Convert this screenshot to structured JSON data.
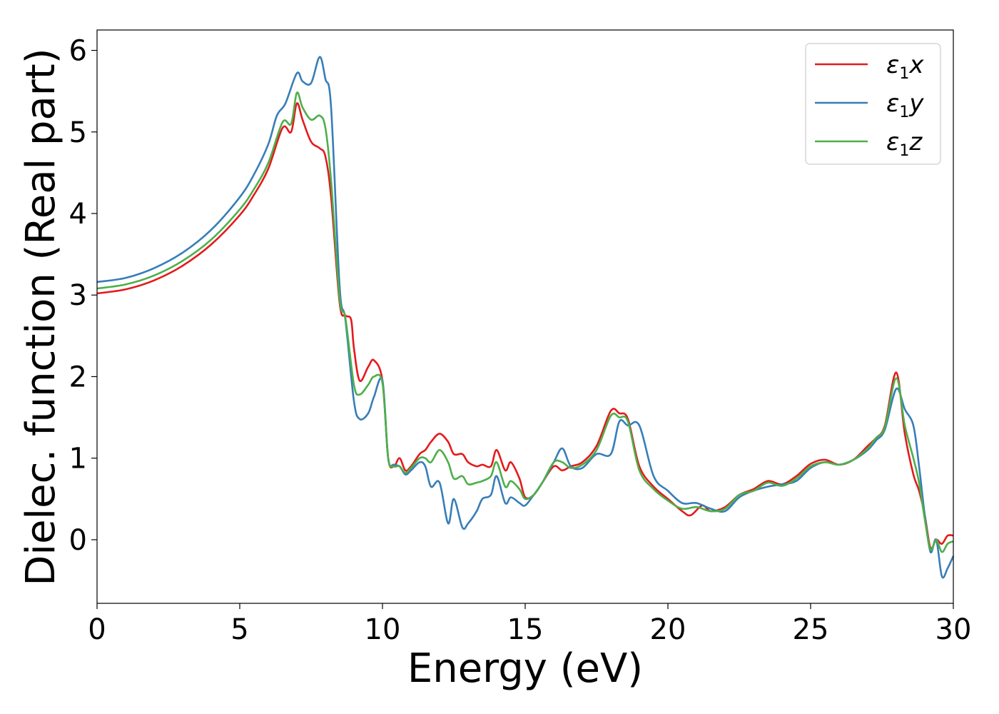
{
  "chart_data": {
    "type": "line",
    "title": "",
    "xlabel": "Energy (eV)",
    "ylabel": "Dielec. function (Real part)",
    "xlim": [
      0,
      30
    ],
    "ylim": [
      -0.78,
      6.25
    ],
    "xticks": [
      0,
      5,
      10,
      15,
      20,
      25,
      30
    ],
    "yticks": [
      0,
      1,
      2,
      3,
      4,
      5,
      6
    ],
    "grid": false,
    "legend_position": "top-right",
    "series": [
      {
        "name": "ε₁x",
        "legend_main": "ε",
        "legend_sub": "1",
        "legend_tail": "x",
        "color": "#e41a1c",
        "x": [
          0,
          1,
          2,
          3,
          4,
          5,
          5.5,
          6,
          6.5,
          6.8,
          7.0,
          7.2,
          7.5,
          7.8,
          8.0,
          8.2,
          8.5,
          8.7,
          8.9,
          9.0,
          9.2,
          9.5,
          9.7,
          10.0,
          10.2,
          10.4,
          10.6,
          10.8,
          11.0,
          11.3,
          11.5,
          11.7,
          12.0,
          12.3,
          12.5,
          12.8,
          13.0,
          13.3,
          13.5,
          13.8,
          14.0,
          14.3,
          14.5,
          14.8,
          15.0,
          15.3,
          15.6,
          16.0,
          16.3,
          16.6,
          17.0,
          17.5,
          18.0,
          18.3,
          18.6,
          19.0,
          19.5,
          20.0,
          20.5,
          20.8,
          21.2,
          21.5,
          22.0,
          22.5,
          23.0,
          23.5,
          24.0,
          24.5,
          25.0,
          25.5,
          26.0,
          26.5,
          27.0,
          27.3,
          27.6,
          28.0,
          28.3,
          28.6,
          28.8,
          29.0,
          29.2,
          29.4,
          29.6,
          29.8,
          30.0
        ],
        "y": [
          3.02,
          3.07,
          3.18,
          3.36,
          3.62,
          3.98,
          4.23,
          4.55,
          5.05,
          5.0,
          5.35,
          5.15,
          4.88,
          4.8,
          4.7,
          4.2,
          2.9,
          2.75,
          2.7,
          2.35,
          1.95,
          2.12,
          2.2,
          1.95,
          1.0,
          0.9,
          1.0,
          0.85,
          0.9,
          1.05,
          1.1,
          1.2,
          1.3,
          1.2,
          1.05,
          1.05,
          0.95,
          0.9,
          0.92,
          0.9,
          1.1,
          0.85,
          0.95,
          0.75,
          0.52,
          0.55,
          0.7,
          0.9,
          0.85,
          0.9,
          0.95,
          1.15,
          1.58,
          1.55,
          1.48,
          0.9,
          0.65,
          0.5,
          0.35,
          0.3,
          0.42,
          0.35,
          0.4,
          0.55,
          0.62,
          0.72,
          0.68,
          0.78,
          0.93,
          0.98,
          0.92,
          0.98,
          1.15,
          1.25,
          1.4,
          2.05,
          1.3,
          0.8,
          0.6,
          0.3,
          -0.1,
          0.0,
          -0.05,
          0.05,
          0.05
        ]
      },
      {
        "name": "ε₁y",
        "legend_main": "ε",
        "legend_sub": "1",
        "legend_tail": "y",
        "color": "#377eb8",
        "x": [
          0,
          1,
          2,
          3,
          4,
          5,
          5.5,
          6,
          6.3,
          6.6,
          7.0,
          7.2,
          7.5,
          7.8,
          8.0,
          8.2,
          8.5,
          8.7,
          9.0,
          9.2,
          9.5,
          9.7,
          10.0,
          10.2,
          10.4,
          10.6,
          10.8,
          11.0,
          11.3,
          11.5,
          11.7,
          12.0,
          12.3,
          12.5,
          12.8,
          13.0,
          13.3,
          13.5,
          13.8,
          14.0,
          14.3,
          14.5,
          14.8,
          15.0,
          15.3,
          15.6,
          16.0,
          16.3,
          16.6,
          17.0,
          17.5,
          18.0,
          18.3,
          18.6,
          19.0,
          19.5,
          20.0,
          20.5,
          21.0,
          21.5,
          22.0,
          22.5,
          23.0,
          23.5,
          24.0,
          24.5,
          25.0,
          25.5,
          26.0,
          26.5,
          27.0,
          27.3,
          27.6,
          28.0,
          28.3,
          28.6,
          28.8,
          29.0,
          29.2,
          29.4,
          29.6,
          29.8,
          30.0
        ],
        "y": [
          3.16,
          3.21,
          3.33,
          3.52,
          3.8,
          4.2,
          4.48,
          4.85,
          5.2,
          5.35,
          5.72,
          5.62,
          5.6,
          5.92,
          5.65,
          5.3,
          3.1,
          2.7,
          1.7,
          1.48,
          1.55,
          1.75,
          1.95,
          1.0,
          0.92,
          0.9,
          0.8,
          0.85,
          0.95,
          0.9,
          0.65,
          0.7,
          0.2,
          0.5,
          0.15,
          0.2,
          0.35,
          0.5,
          0.55,
          0.78,
          0.45,
          0.52,
          0.45,
          0.42,
          0.55,
          0.7,
          0.95,
          1.12,
          0.9,
          0.88,
          1.05,
          1.05,
          1.45,
          1.4,
          1.4,
          0.78,
          0.6,
          0.45,
          0.45,
          0.38,
          0.35,
          0.52,
          0.6,
          0.65,
          0.68,
          0.72,
          0.88,
          0.95,
          0.92,
          0.98,
          1.1,
          1.22,
          1.35,
          1.85,
          1.6,
          1.4,
          0.9,
          0.3,
          -0.15,
          0.0,
          -0.45,
          -0.35,
          -0.2
        ]
      },
      {
        "name": "ε₁z",
        "legend_main": "ε",
        "legend_sub": "1",
        "legend_tail": "z",
        "color": "#4daf4a",
        "x": [
          0,
          1,
          2,
          3,
          4,
          5,
          5.5,
          6,
          6.5,
          6.8,
          7.0,
          7.2,
          7.5,
          7.8,
          8.0,
          8.2,
          8.5,
          8.7,
          9.0,
          9.2,
          9.5,
          9.7,
          10.0,
          10.2,
          10.4,
          10.6,
          10.8,
          11.0,
          11.3,
          11.5,
          11.7,
          12.0,
          12.3,
          12.5,
          12.8,
          13.0,
          13.3,
          13.5,
          13.8,
          14.0,
          14.3,
          14.5,
          14.8,
          15.0,
          15.3,
          15.6,
          16.0,
          16.3,
          16.6,
          17.0,
          17.5,
          18.0,
          18.3,
          18.6,
          19.0,
          19.5,
          20.0,
          20.5,
          21.0,
          21.5,
          22.0,
          22.5,
          23.0,
          23.5,
          24.0,
          24.5,
          25.0,
          25.5,
          26.0,
          26.5,
          27.0,
          27.3,
          27.6,
          28.0,
          28.3,
          28.6,
          28.8,
          29.0,
          29.2,
          29.4,
          29.6,
          29.8,
          30.0
        ],
        "y": [
          3.08,
          3.13,
          3.24,
          3.42,
          3.68,
          4.05,
          4.3,
          4.62,
          5.12,
          5.1,
          5.48,
          5.3,
          5.15,
          5.2,
          5.05,
          4.4,
          2.95,
          2.72,
          1.9,
          1.78,
          1.9,
          2.0,
          1.92,
          1.0,
          0.9,
          0.9,
          0.82,
          0.88,
          1.0,
          1.0,
          0.95,
          1.1,
          0.95,
          0.75,
          0.78,
          0.68,
          0.7,
          0.72,
          0.78,
          0.95,
          0.65,
          0.72,
          0.62,
          0.5,
          0.55,
          0.7,
          0.95,
          0.95,
          0.88,
          0.92,
          1.1,
          1.52,
          1.5,
          1.45,
          0.85,
          0.62,
          0.48,
          0.38,
          0.4,
          0.35,
          0.38,
          0.55,
          0.6,
          0.7,
          0.66,
          0.75,
          0.9,
          0.95,
          0.92,
          0.98,
          1.12,
          1.25,
          1.38,
          1.98,
          1.4,
          1.0,
          0.7,
          0.25,
          -0.12,
          0.0,
          -0.15,
          -0.05,
          -0.02
        ]
      }
    ]
  }
}
